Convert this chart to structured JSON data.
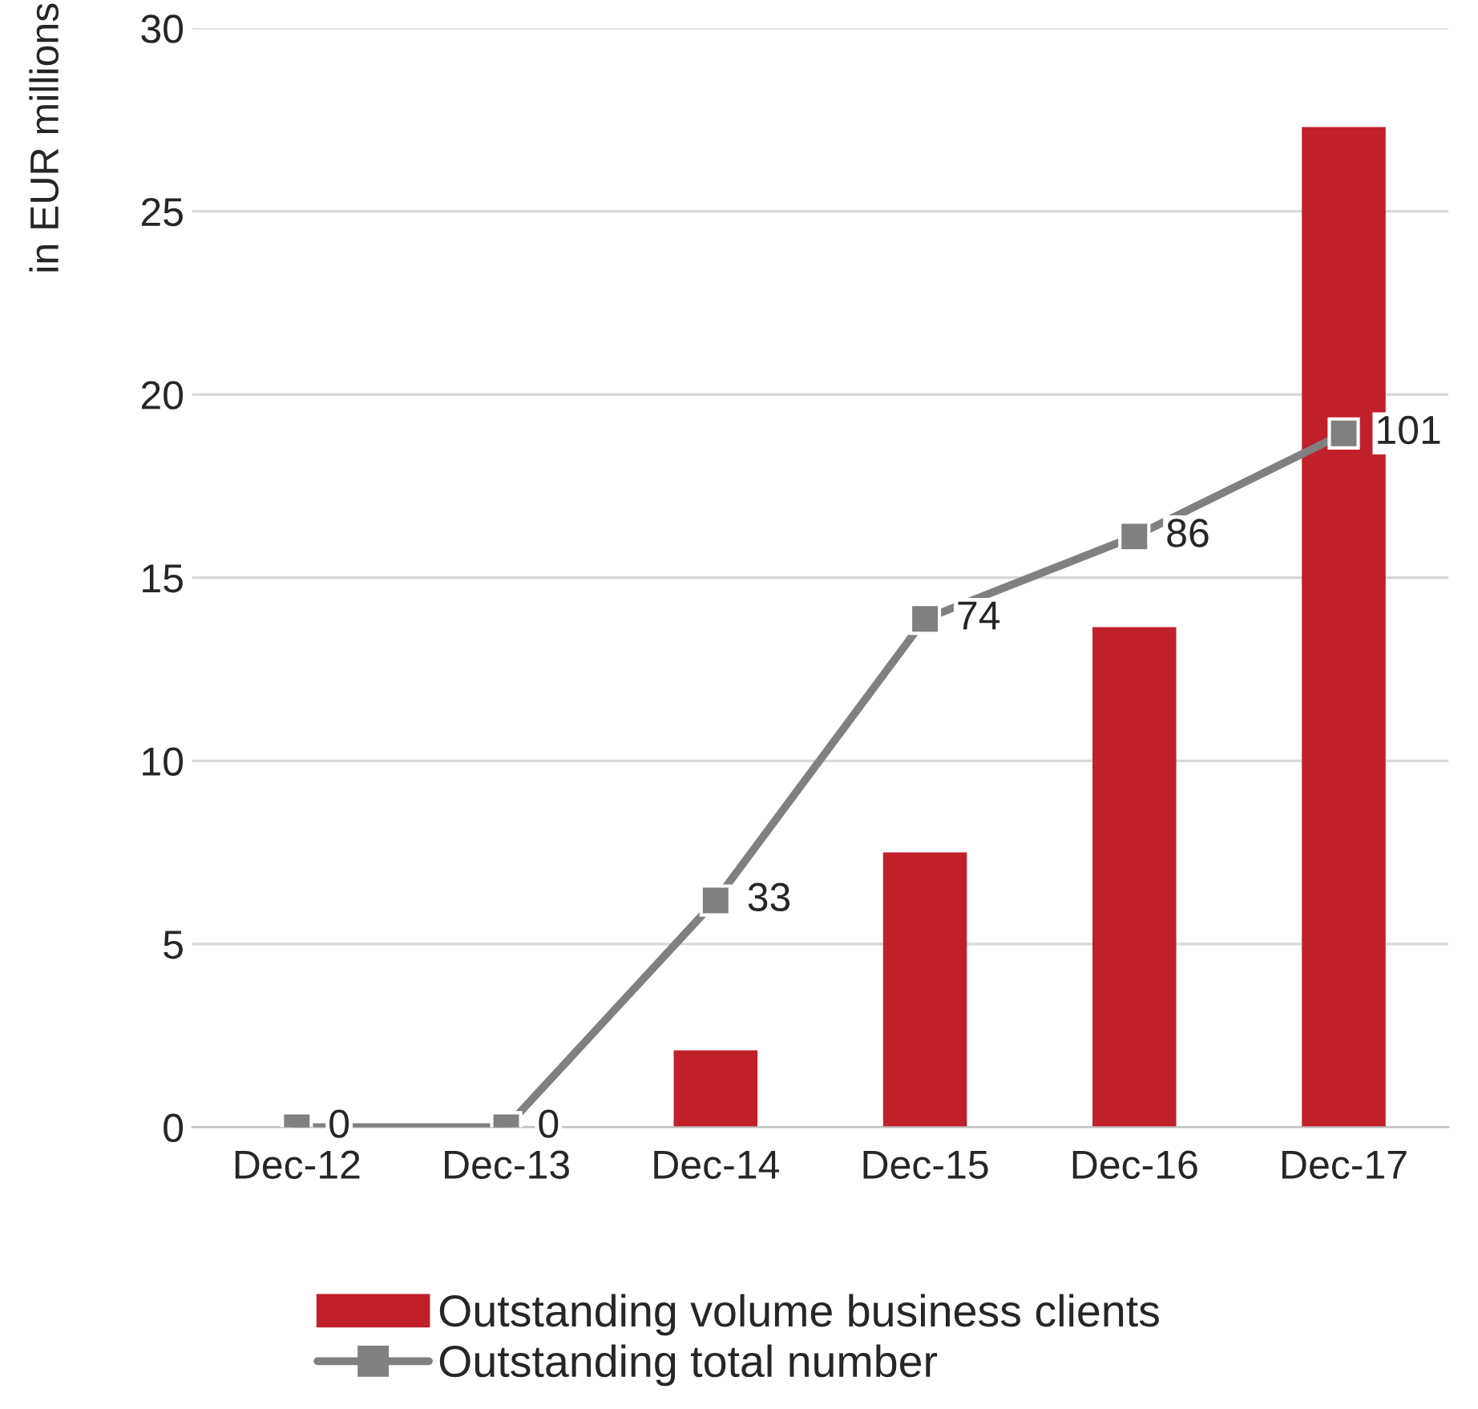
{
  "chart_data": {
    "type": "bar",
    "ylabel": "in EUR millions",
    "categories": [
      "Dec-12",
      "Dec-13",
      "Dec-14",
      "Dec-15",
      "Dec-16",
      "Dec-17"
    ],
    "series": [
      {
        "name": "Outstanding volume business clients",
        "color": "#c0202a",
        "values": [
          0,
          0,
          2.1,
          7.5,
          13.65,
          27.3
        ]
      },
      {
        "name": "Outstanding total number",
        "type": "line",
        "axis": "y2",
        "color": "#808080",
        "marker": "square",
        "values": [
          0,
          0,
          33,
          74,
          86,
          101
        ],
        "value_labels": [
          "0",
          "0",
          "33",
          "74",
          "86",
          "101"
        ]
      }
    ],
    "ylim": [
      0,
      30
    ],
    "yticks": [
      0,
      5,
      10,
      15,
      20,
      25,
      30
    ],
    "y2lim": [
      0,
      160
    ],
    "grid": "y",
    "legend": "bottom"
  }
}
